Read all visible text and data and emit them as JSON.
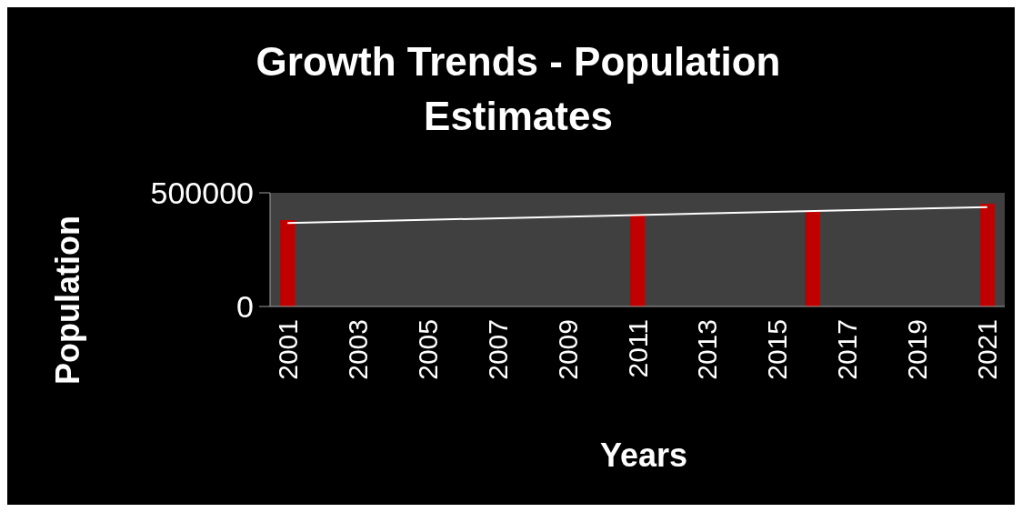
{
  "chart_data": {
    "type": "bar",
    "title": "Growth Trends - Population Estimates",
    "xlabel": "Years",
    "ylabel": "Population",
    "xlim": [
      2000.5,
      2021.5
    ],
    "xticks": [
      2001,
      2003,
      2005,
      2007,
      2009,
      2011,
      2013,
      2015,
      2017,
      2019,
      2021
    ],
    "ylim": [
      0,
      500000
    ],
    "yticks": [
      0,
      500000
    ],
    "series": [
      {
        "color": "#c00000",
        "x": [
          2001,
          2011,
          2016,
          2021
        ],
        "values": [
          380000,
          400000,
          418000,
          452000
        ]
      },
      {
        "type": "line",
        "color": "#ffffff",
        "x": [
          2001,
          2021
        ],
        "values": [
          367000,
          437000
        ],
        "marker": "none"
      }
    ]
  }
}
